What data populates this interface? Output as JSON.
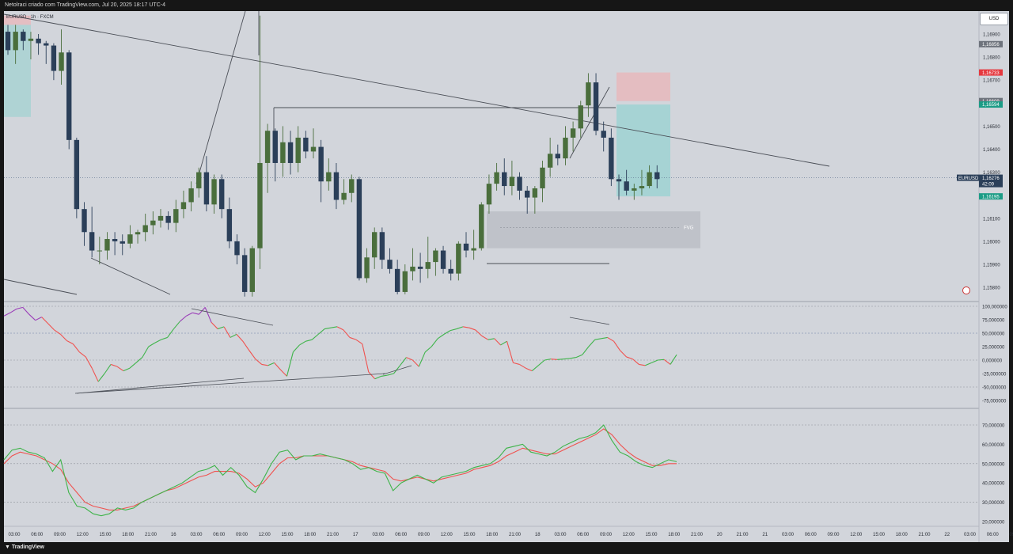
{
  "header": {
    "title": "Netolraci criado com TradingView.com, Jul 20, 2025 18:17 UTC-4",
    "symbol_line": "EURUSD · 1h · FXCM",
    "currency_button": "USD"
  },
  "footer": {
    "brand": "TradingView"
  },
  "colors": {
    "background": "#d2d5db",
    "bull": "#4a6e3c",
    "bear": "#2b3f59",
    "rsi_up": "#3fb44a",
    "rsi_down": "#f0524f",
    "rsi_high": "#9b3fb8",
    "stoch_k": "#3fb44a",
    "stoch_d": "#f0524f",
    "stop_zone": "#e8b8bc",
    "target_zone": "#9fd2d2",
    "fvg_zone": "#bdc0c6"
  },
  "chart_data": [
    {
      "type": "candlestick",
      "symbol": "EURUSD",
      "timeframe": "1h",
      "price_axis_labels": [
        "1,16900",
        "1,16800",
        "1,16700",
        "1,16600",
        "1,16500",
        "1,16400",
        "1,16300",
        "1,16200",
        "1,16100",
        "1,16000",
        "1,15900",
        "1,15800"
      ],
      "ylim": [
        1.1575,
        1.17
      ],
      "price_tags": [
        {
          "text": "1,16856",
          "price": 1.16856,
          "color": "#6e737c"
        },
        {
          "text": "1,16733",
          "price": 1.16733,
          "color": "#e5393f"
        },
        {
          "text": "1,16609",
          "price": 1.16609,
          "color": "#6e737c"
        },
        {
          "text": "1,16594",
          "price": 1.16594,
          "color": "#1c9c86"
        },
        {
          "text": "1,16195",
          "price": 1.16195,
          "color": "#1c9c86"
        }
      ],
      "last_price": {
        "symbol": "EURUSD",
        "price": "1,16276",
        "countdown": "42:09"
      },
      "annotation": "FVG",
      "candles_ohlc": [
        [
          1.1691,
          1.1694,
          1.1681,
          1.1683
        ],
        [
          1.1683,
          1.1694,
          1.1677,
          1.1691
        ],
        [
          1.1691,
          1.1692,
          1.1683,
          1.1687
        ],
        [
          1.1687,
          1.1691,
          1.1679,
          1.1688
        ],
        [
          1.1688,
          1.169,
          1.1681,
          1.1686
        ],
        [
          1.1686,
          1.1687,
          1.1677,
          1.1685
        ],
        [
          1.1685,
          1.1686,
          1.167,
          1.1674
        ],
        [
          1.1674,
          1.1692,
          1.1668,
          1.1682
        ],
        [
          1.1682,
          1.1683,
          1.164,
          1.1644
        ],
        [
          1.1644,
          1.1645,
          1.161,
          1.1614
        ],
        [
          1.1614,
          1.1617,
          1.1598,
          1.1604
        ],
        [
          1.1604,
          1.1615,
          1.1593,
          1.1596
        ],
        [
          1.1596,
          1.1602,
          1.159,
          1.1596
        ],
        [
          1.1596,
          1.1604,
          1.1592,
          1.1601
        ],
        [
          1.1601,
          1.1604,
          1.1594,
          1.16
        ],
        [
          1.16,
          1.1603,
          1.1594,
          1.1599
        ],
        [
          1.1599,
          1.1607,
          1.1597,
          1.1603
        ],
        [
          1.1603,
          1.1605,
          1.1599,
          1.1604
        ],
        [
          1.1604,
          1.1612,
          1.16,
          1.1607
        ],
        [
          1.1607,
          1.1613,
          1.1603,
          1.1609
        ],
        [
          1.1609,
          1.1614,
          1.1606,
          1.1611
        ],
        [
          1.1611,
          1.1613,
          1.1605,
          1.1608
        ],
        [
          1.1608,
          1.1618,
          1.1604,
          1.1614
        ],
        [
          1.1614,
          1.1622,
          1.161,
          1.1617
        ],
        [
          1.1617,
          1.1626,
          1.1613,
          1.1623
        ],
        [
          1.1623,
          1.1632,
          1.1619,
          1.163
        ],
        [
          1.163,
          1.1637,
          1.1613,
          1.1616
        ],
        [
          1.1616,
          1.1629,
          1.1612,
          1.1627
        ],
        [
          1.1627,
          1.1629,
          1.161,
          1.1614
        ],
        [
          1.1614,
          1.1619,
          1.1597,
          1.16
        ],
        [
          1.16,
          1.1603,
          1.159,
          1.1594
        ],
        [
          1.1594,
          1.1597,
          1.1576,
          1.1578
        ],
        [
          1.1578,
          1.1598,
          1.1576,
          1.1597
        ],
        [
          1.1597,
          1.1698,
          1.1588,
          1.1634
        ],
        [
          1.1634,
          1.1651,
          1.1621,
          1.1648
        ],
        [
          1.1648,
          1.1649,
          1.1626,
          1.1634
        ],
        [
          1.1634,
          1.165,
          1.1628,
          1.1643
        ],
        [
          1.1643,
          1.1648,
          1.1629,
          1.1634
        ],
        [
          1.1634,
          1.165,
          1.163,
          1.1645
        ],
        [
          1.1645,
          1.1648,
          1.1636,
          1.1639
        ],
        [
          1.1639,
          1.1649,
          1.1636,
          1.1641
        ],
        [
          1.1641,
          1.1644,
          1.1617,
          1.1626
        ],
        [
          1.1626,
          1.1636,
          1.1622,
          1.163
        ],
        [
          1.163,
          1.1634,
          1.1614,
          1.1618
        ],
        [
          1.1618,
          1.1627,
          1.1616,
          1.1621
        ],
        [
          1.1621,
          1.1629,
          1.1617,
          1.1627
        ],
        [
          1.1627,
          1.1628,
          1.1583,
          1.1584
        ],
        [
          1.1584,
          1.1597,
          1.1582,
          1.1593
        ],
        [
          1.1593,
          1.1606,
          1.1588,
          1.1604
        ],
        [
          1.1604,
          1.1606,
          1.1588,
          1.1592
        ],
        [
          1.1592,
          1.1597,
          1.1586,
          1.1588
        ],
        [
          1.1588,
          1.1592,
          1.1577,
          1.1578
        ],
        [
          1.1578,
          1.159,
          1.1577,
          1.1587
        ],
        [
          1.1587,
          1.1597,
          1.1583,
          1.1589
        ],
        [
          1.1589,
          1.1595,
          1.1582,
          1.1588
        ],
        [
          1.1588,
          1.1602,
          1.1584,
          1.1591
        ],
        [
          1.1591,
          1.1597,
          1.1585,
          1.1596
        ],
        [
          1.1596,
          1.1598,
          1.1586,
          1.1588
        ],
        [
          1.1588,
          1.1592,
          1.1583,
          1.1586
        ],
        [
          1.1586,
          1.16,
          1.1583,
          1.1599
        ],
        [
          1.1599,
          1.1604,
          1.1593,
          1.1596
        ],
        [
          1.1596,
          1.1605,
          1.1592,
          1.1597
        ],
        [
          1.1597,
          1.1617,
          1.1596,
          1.1616
        ],
        [
          1.1616,
          1.1629,
          1.1612,
          1.1625
        ],
        [
          1.1625,
          1.1634,
          1.1622,
          1.163
        ],
        [
          1.163,
          1.1636,
          1.162,
          1.1624
        ],
        [
          1.1624,
          1.1635,
          1.162,
          1.1628
        ],
        [
          1.1628,
          1.163,
          1.1618,
          1.1622
        ],
        [
          1.1622,
          1.1624,
          1.1612,
          1.1619
        ],
        [
          1.1619,
          1.1624,
          1.1612,
          1.1623
        ],
        [
          1.1623,
          1.1635,
          1.1617,
          1.1632
        ],
        [
          1.1632,
          1.1645,
          1.1628,
          1.1638
        ],
        [
          1.1638,
          1.1642,
          1.1633,
          1.1636
        ],
        [
          1.1636,
          1.165,
          1.1633,
          1.1645
        ],
        [
          1.1645,
          1.1652,
          1.1639,
          1.1649
        ],
        [
          1.1649,
          1.1661,
          1.1645,
          1.1659
        ],
        [
          1.1659,
          1.1673,
          1.1654,
          1.1669
        ],
        [
          1.1669,
          1.1673,
          1.1646,
          1.1648
        ],
        [
          1.1648,
          1.1652,
          1.1639,
          1.1645
        ],
        [
          1.1645,
          1.1649,
          1.1624,
          1.1627
        ],
        [
          1.1627,
          1.1629,
          1.1618,
          1.1626
        ],
        [
          1.1626,
          1.1631,
          1.162,
          1.1622
        ],
        [
          1.1622,
          1.1625,
          1.1618,
          1.1623
        ],
        [
          1.1623,
          1.1631,
          1.162,
          1.1624
        ],
        [
          1.1624,
          1.1633,
          1.1623,
          1.163
        ],
        [
          1.163,
          1.1633,
          1.1623,
          1.1627
        ]
      ]
    },
    {
      "type": "line",
      "name": "RSI",
      "axis_labels": [
        "100,000000",
        "75,000000",
        "50,000000",
        "25,000000",
        "0,000000",
        "-25,000000",
        "-50,000000",
        "-75,000000"
      ],
      "ylim": [
        -80,
        100
      ],
      "values": [
        82,
        88,
        95,
        98,
        85,
        74,
        80,
        68,
        56,
        48,
        36,
        30,
        15,
        6,
        -15,
        -40,
        -25,
        -8,
        -12,
        -20,
        -15,
        -5,
        5,
        25,
        32,
        38,
        42,
        58,
        72,
        82,
        88,
        85,
        98,
        70,
        58,
        62,
        42,
        48,
        35,
        18,
        2,
        -8,
        -10,
        -5,
        -18,
        -30,
        15,
        28,
        35,
        38,
        48,
        58,
        60,
        62,
        56,
        42,
        38,
        30,
        -22,
        -35,
        -30,
        -28,
        -25,
        -10,
        5,
        0,
        -12,
        15,
        25,
        40,
        48,
        55,
        58,
        62,
        60,
        56,
        45,
        38,
        40,
        28,
        35,
        -5,
        -8,
        -15,
        -20,
        -10,
        0,
        2,
        1,
        2,
        3,
        5,
        10,
        25,
        38,
        40,
        42,
        35,
        18,
        6,
        2,
        -8,
        -10,
        -5,
        0,
        1,
        -8,
        10
      ],
      "reference_lines": [
        100,
        50,
        0,
        -50
      ]
    },
    {
      "type": "line",
      "name": "Stochastic RSI",
      "axis_labels": [
        "70,000000",
        "60,000000",
        "50,000000",
        "40,000000",
        "30,000000",
        "20,000000"
      ],
      "ylim": [
        15,
        75
      ],
      "series": [
        {
          "values": [
            52,
            57,
            58,
            56,
            55,
            53,
            46,
            52,
            35,
            28,
            27,
            24,
            23,
            24,
            27,
            26,
            27,
            30,
            32,
            34,
            36,
            38,
            40,
            43,
            46,
            47,
            49,
            44,
            48,
            44,
            38,
            35,
            42,
            50,
            56,
            57,
            52,
            54,
            54,
            55,
            54,
            53,
            52,
            50,
            47,
            48,
            46,
            45,
            36,
            40,
            42,
            44,
            42,
            40,
            43,
            44,
            45,
            46,
            48,
            49,
            50,
            53,
            58,
            59,
            60,
            56,
            55,
            54,
            56,
            59,
            61,
            63,
            64,
            66,
            70,
            62,
            56,
            54,
            51,
            49,
            48,
            50,
            52,
            51
          ]
        },
        {
          "values": [
            50,
            54,
            56,
            55,
            54,
            52,
            50,
            47,
            40,
            35,
            30,
            28,
            27,
            26,
            26,
            27,
            28,
            30,
            32,
            34,
            36,
            37,
            39,
            41,
            43,
            44,
            46,
            46,
            46,
            45,
            42,
            38,
            40,
            45,
            50,
            53,
            53,
            54,
            54,
            54,
            54,
            53,
            52,
            51,
            49,
            48,
            47,
            46,
            42,
            41,
            42,
            43,
            42,
            41,
            42,
            43,
            44,
            45,
            47,
            48,
            49,
            51,
            54,
            56,
            58,
            57,
            56,
            55,
            55,
            57,
            59,
            61,
            63,
            65,
            68,
            65,
            60,
            56,
            53,
            51,
            49,
            49,
            50,
            50
          ]
        }
      ],
      "reference_lines": [
        70,
        50,
        30
      ]
    }
  ],
  "time_axis_labels": [
    "03:00",
    "06:00",
    "09:00",
    "12:00",
    "15:00",
    "18:00",
    "21:00",
    "16",
    "03:00",
    "06:00",
    "09:00",
    "12:00",
    "15:00",
    "18:00",
    "21:00",
    "17",
    "03:00",
    "06:00",
    "09:00",
    "12:00",
    "15:00",
    "18:00",
    "21:00",
    "18",
    "03:00",
    "06:00",
    "09:00",
    "12:00",
    "15:00",
    "18:00",
    "21:00",
    "20",
    "21:00",
    "21",
    "03:00",
    "06:00",
    "09:00",
    "12:00",
    "15:00",
    "18:00",
    "21:00",
    "22",
    "03:00",
    "06:00",
    "09:00"
  ]
}
